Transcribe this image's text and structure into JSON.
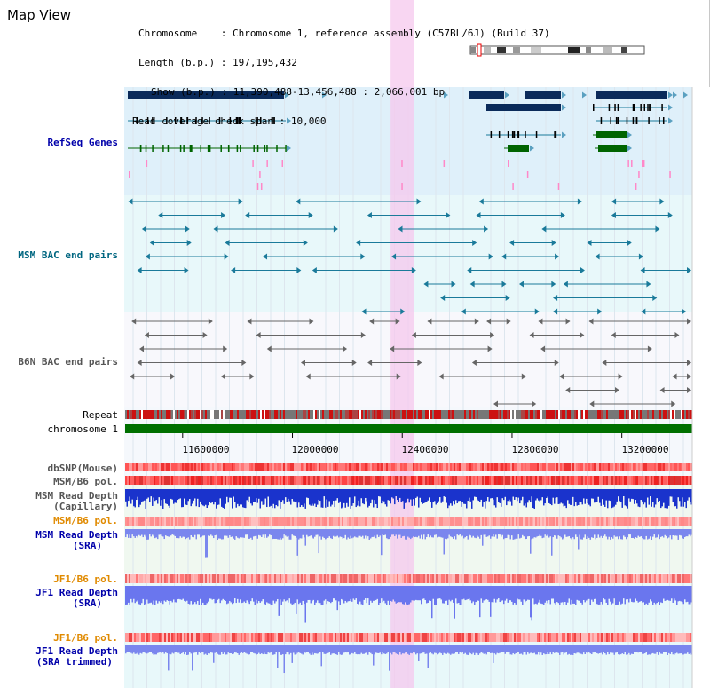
{
  "window": {
    "title": "Map View"
  },
  "info": {
    "chromosome_key": "Chromosome    ",
    "chromosome_val": ": Chromosome 1, reference assembly (C57BL/6J) (Build 37)",
    "length_key": "Length (b.p.)",
    "length_val": ": 197,195,432",
    "show_key": "Show (b.p.)",
    "show_val": ": 11,390,488-13,456,488 : 2,066,001 bp",
    "coverage_key": "Read coverage check span",
    "coverage_val": ": 10,000"
  },
  "tracks": {
    "refseq": "RefSeq Genes",
    "msm_bac": "MSM BAC end pairs",
    "b6n_bac": "B6N BAC end pairs",
    "repeat": "Repeat",
    "chromosome": "chromosome 1",
    "dbsnp": "dbSNP(Mouse)",
    "msm_b6_pol_1": "MSM/B6 pol.",
    "msm_depth_cap_1": "MSM Read Depth",
    "msm_depth_cap_2": "(Capillary)",
    "msm_b6_pol_2": "MSM/B6 pol.",
    "msm_depth_sra_1": "MSM Read Depth",
    "msm_depth_sra_2": "(SRA)",
    "jf1_b6_pol_1": "JF1/B6 pol.",
    "jf1_depth_sra_1": "JF1 Read Depth",
    "jf1_depth_sra_2": "(SRA)",
    "jf1_b6_pol_2": "JF1/B6 pol.",
    "jf1_depth_trim_1": "JF1 Read Depth",
    "jf1_depth_trim_2": "(SRA trimmed)"
  },
  "axis": {
    "ticks": [
      "11600000",
      "12000000",
      "12400000",
      "12800000",
      "13200000"
    ],
    "tick_values": [
      11600000,
      12000000,
      12400000,
      12800000,
      13200000
    ],
    "range": [
      11390488,
      13456488
    ],
    "highlight": [
      12390000,
      12410000
    ]
  },
  "colors": {
    "refseq_bg": "#dff0fa",
    "msm_bg": "#e8f8fa",
    "gene": "#0a2a5a",
    "gene_green": "#006400",
    "bac_msm": "#1a7a9a",
    "bac_b6n": "#666666",
    "highlight": "#f5c8ee",
    "chrom": "#007000",
    "label_blue": "#0000aa",
    "label_teal": "#006680",
    "label_gray": "#555555",
    "label_orange": "#e08a00"
  }
}
